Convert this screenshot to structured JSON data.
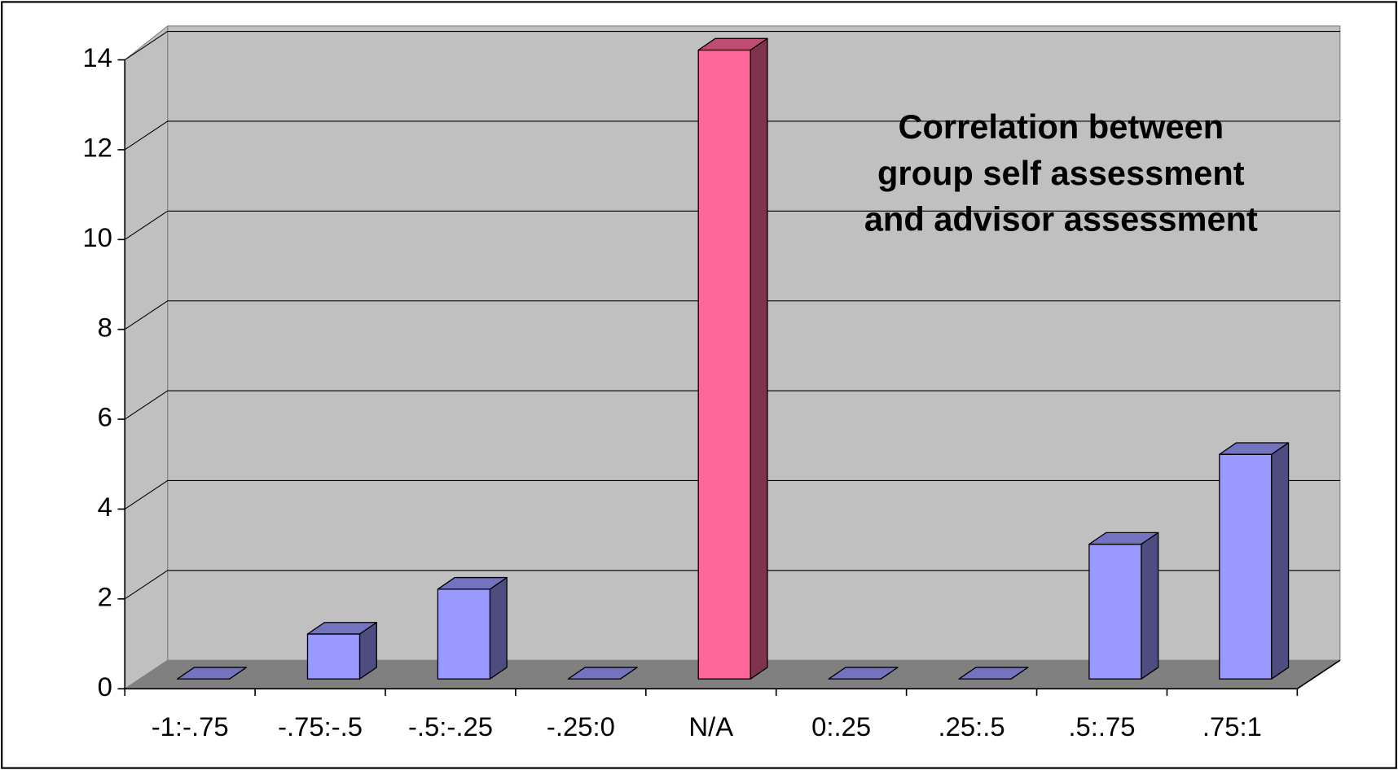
{
  "chart_data": {
    "type": "bar3d",
    "title": [
      "Correlation between",
      "group self assessment",
      "and advisor assessment"
    ],
    "categories": [
      "-1:-.75",
      "-.75:-.5",
      "-.5:-.25",
      "-.25:0",
      "N/A",
      "0:.25",
      ".25:.5",
      ".5:.75",
      ".75:1"
    ],
    "values": [
      0,
      1,
      2,
      0,
      14,
      0,
      0,
      3,
      5
    ],
    "colors": [
      "#9999ff",
      "#9999ff",
      "#9999ff",
      "#9999ff",
      "#ff6699",
      "#9999ff",
      "#9999ff",
      "#9999ff",
      "#9999ff"
    ],
    "ylim": [
      0,
      14
    ],
    "yticks": [
      0,
      2,
      4,
      6,
      8,
      10,
      12,
      14
    ],
    "grid": true
  }
}
